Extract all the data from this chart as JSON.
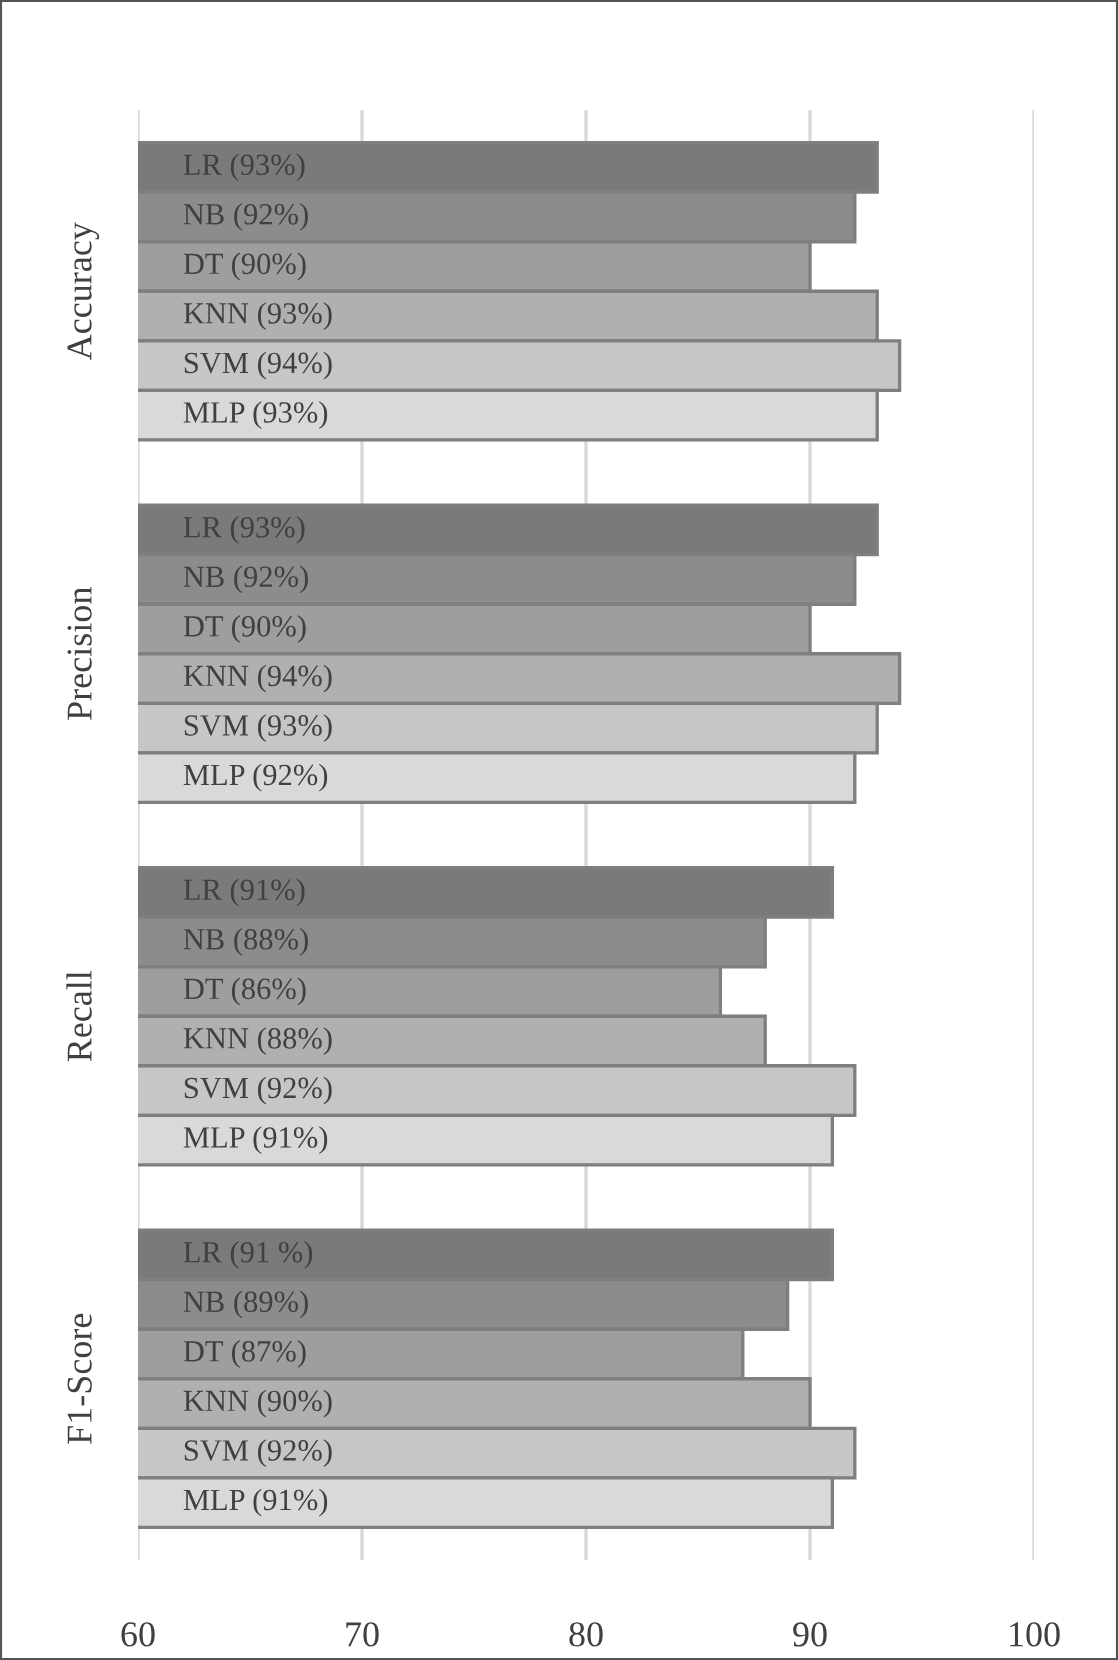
{
  "chart_data": {
    "type": "bar",
    "orientation": "horizontal",
    "categories": [
      "Accuracy",
      "Precision",
      "Recall",
      "F1-Score"
    ],
    "series": [
      {
        "color": "#7a7a7a",
        "values": [
          93,
          93,
          91,
          91
        ],
        "value_labels": [
          "LR (93%)",
          "LR (93%)",
          "LR (91%)",
          "LR (91 %)"
        ]
      },
      {
        "color": "#8c8c8c",
        "values": [
          92,
          92,
          88,
          89
        ],
        "value_labels": [
          "NB (92%)",
          "NB (92%)",
          "NB (88%)",
          "NB (89%)"
        ]
      },
      {
        "color": "#9e9e9e",
        "values": [
          90,
          90,
          86,
          87
        ],
        "value_labels": [
          "DT (90%)",
          "DT (90%)",
          "DT (86%)",
          "DT (87%)"
        ]
      },
      {
        "color": "#b0b0b0",
        "values": [
          93,
          94,
          88,
          90
        ],
        "value_labels": [
          "KNN (93%)",
          "KNN (94%)",
          "KNN (88%)",
          "KNN (90%)"
        ]
      },
      {
        "color": "#c6c6c6",
        "values": [
          94,
          93,
          92,
          92
        ],
        "value_labels": [
          "SVM (94%)",
          "SVM (93%)",
          "SVM (92%)",
          "SVM (92%)"
        ]
      },
      {
        "color": "#d9d9d9",
        "values": [
          93,
          92,
          91,
          91
        ],
        "value_labels": [
          "MLP (93%)",
          "MLP (92%)",
          "MLP (91%)",
          "MLP (91%)"
        ]
      }
    ],
    "xlim": [
      60,
      100
    ],
    "xticks": [
      60,
      70,
      80,
      90,
      100
    ],
    "grid": "x",
    "legend": false
  }
}
